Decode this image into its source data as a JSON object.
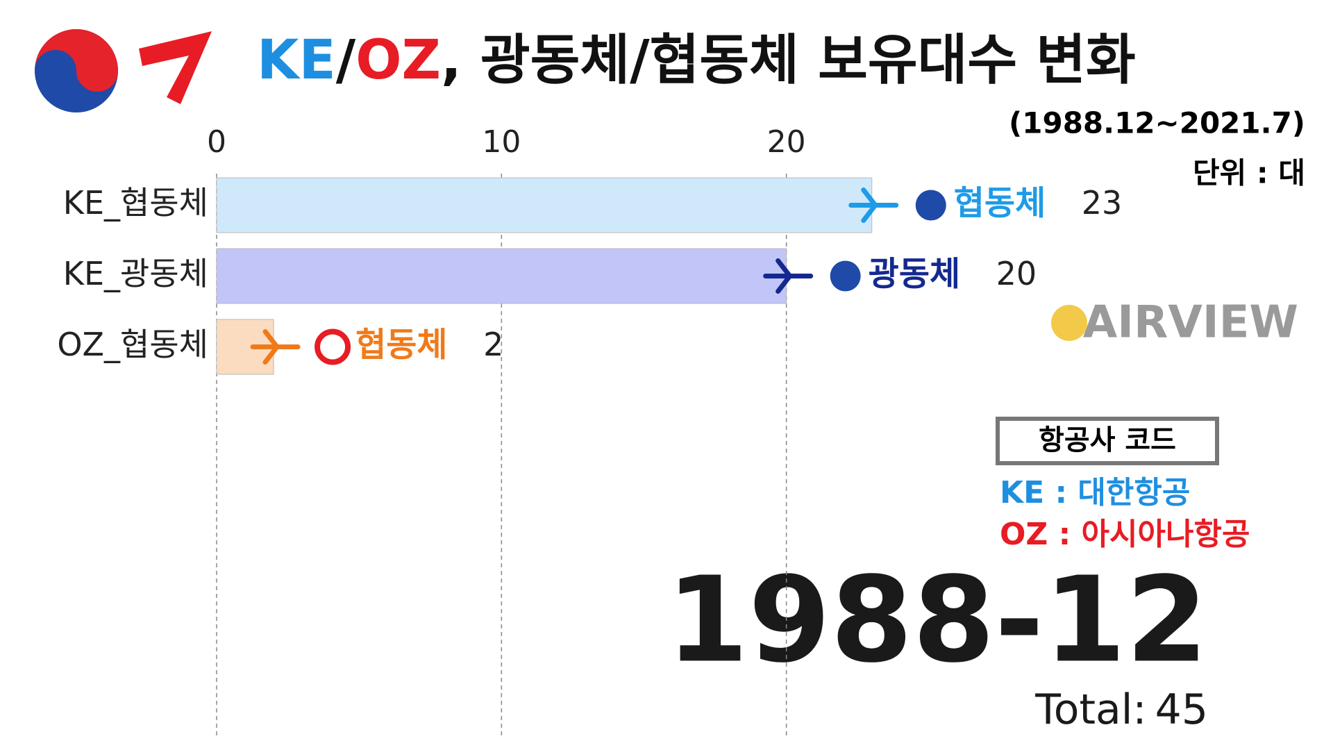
{
  "chart_data": {
    "type": "bar",
    "title_parts": [
      {
        "text": "KE",
        "color": "#1e8fe0"
      },
      {
        "text": "/",
        "color": "#111111"
      },
      {
        "text": "OZ",
        "color": "#e81c24"
      },
      {
        "text": ", 광동체/협동체 보유대수 변화",
        "color": "#111111"
      }
    ],
    "subtitle": "(1988.12~2021.7)",
    "unit": "단위 : 대",
    "categories": [
      "KE_협동체",
      "KE_광동체",
      "OZ_협동체"
    ],
    "values": [
      23,
      20,
      2
    ],
    "colors": [
      "#cfe9fb",
      "#c2c5f7",
      "#fcdcc1"
    ],
    "bar_labels": [
      {
        "text": "협동체",
        "color": "#1e9be6"
      },
      {
        "text": "광동체",
        "color": "#14298f"
      },
      {
        "text": "협동체",
        "color": "#f07a1a"
      }
    ],
    "xlim": [
      0,
      30
    ],
    "xticks": [
      0,
      10,
      20
    ],
    "grid": true,
    "period": "1988-12",
    "total_label": "Total:",
    "total": 45,
    "watermark": "AIRVIEW",
    "legend": {
      "title": "항공사 코드",
      "entries": [
        {
          "text": "KE : 대한항공",
          "color": "#1e8fe0"
        },
        {
          "text": "OZ : 아시아나항공",
          "color": "#e81c24"
        }
      ]
    }
  }
}
